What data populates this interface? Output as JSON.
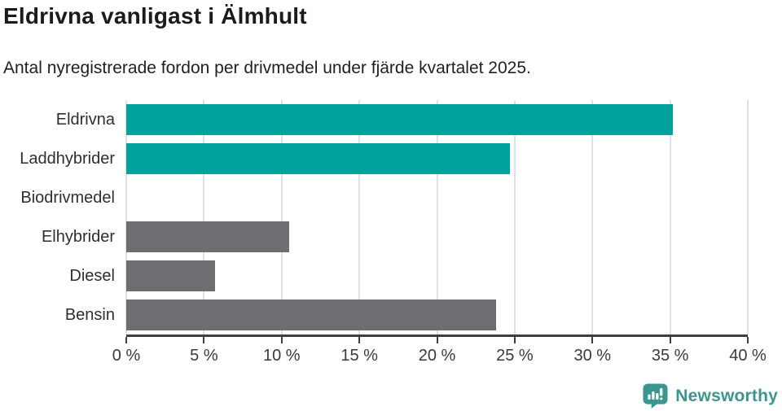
{
  "header": {
    "title": "Eldrivna vanligast i Älmhult",
    "subtitle": "Antal nyregistrerade fordon per drivmedel under fjärde kvartalet 2025."
  },
  "chart_data": {
    "type": "bar",
    "orientation": "horizontal",
    "title": "Eldrivna vanligast i Älmhult",
    "subtitle": "Antal nyregistrerade fordon per drivmedel under fjärde kvartalet 2025.",
    "categories": [
      "Eldrivna",
      "Laddhybrider",
      "Biodrivmedel",
      "Elhybrider",
      "Diesel",
      "Bensin"
    ],
    "values": [
      35.2,
      24.7,
      0,
      10.5,
      5.7,
      23.8
    ],
    "unit": "%",
    "bar_colors": [
      "#00a39c",
      "#00a39c",
      "#6d6d72",
      "#6d6d72",
      "#6d6d72",
      "#6d6d72"
    ],
    "xlim": [
      0,
      40
    ],
    "x_ticks": [
      0,
      5,
      10,
      15,
      20,
      25,
      30,
      35,
      40
    ],
    "x_tick_labels": [
      "0 %",
      "5 %",
      "10 %",
      "15 %",
      "20 %",
      "25 %",
      "30 %",
      "35 %",
      "40 %"
    ],
    "grid": "vertical-only",
    "legend": "none"
  },
  "colors": {
    "accent_teal": "#00a39c",
    "neutral_gray": "#6d6d72",
    "brand_teal": "#3a968e",
    "gridline": "#e0e0e0",
    "axis": "#3e3e3e"
  },
  "footer": {
    "brand": "Newsworthy"
  }
}
